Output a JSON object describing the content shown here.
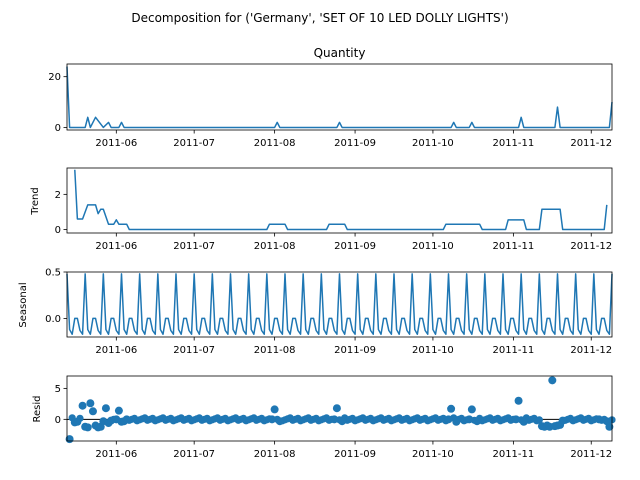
{
  "figure": {
    "suptitle": "Decomposition for ('Germany', 'SET OF 10 LED DOLLY LIGHTS')"
  },
  "colors": {
    "series": "#1f77b4",
    "axes": "#000000"
  },
  "chart_data": [
    {
      "type": "line",
      "name": "observed",
      "title": "Quantity",
      "ylabel": "",
      "x_range": [
        "2011-05-13",
        "2011-12-09"
      ],
      "ylim": [
        -1,
        25
      ],
      "yticks": [
        0,
        20
      ],
      "xticks": [
        "2011-06",
        "2011-07",
        "2011-08",
        "2011-09",
        "2011-10",
        "2011-11",
        "2011-12"
      ],
      "points": [
        [
          "2011-05-13",
          24
        ],
        [
          "2011-05-14",
          0
        ],
        [
          "2011-05-20",
          0
        ],
        [
          "2011-05-21",
          4
        ],
        [
          "2011-05-22",
          0
        ],
        [
          "2011-05-24",
          4
        ],
        [
          "2011-05-27",
          0
        ],
        [
          "2011-05-29",
          2
        ],
        [
          "2011-05-30",
          0
        ],
        [
          "2011-06-02",
          0
        ],
        [
          "2011-06-03",
          2
        ],
        [
          "2011-06-04",
          0
        ],
        [
          "2011-08-01",
          0
        ],
        [
          "2011-08-02",
          2
        ],
        [
          "2011-08-03",
          0
        ],
        [
          "2011-08-25",
          0
        ],
        [
          "2011-08-26",
          2
        ],
        [
          "2011-08-27",
          0
        ],
        [
          "2011-10-08",
          0
        ],
        [
          "2011-10-09",
          2
        ],
        [
          "2011-10-10",
          0
        ],
        [
          "2011-10-15",
          0
        ],
        [
          "2011-10-16",
          2
        ],
        [
          "2011-10-17",
          0
        ],
        [
          "2011-11-03",
          0
        ],
        [
          "2011-11-04",
          4
        ],
        [
          "2011-11-05",
          0
        ],
        [
          "2011-11-17",
          0
        ],
        [
          "2011-11-18",
          8
        ],
        [
          "2011-11-19",
          0
        ],
        [
          "2011-12-08",
          0
        ],
        [
          "2011-12-09",
          10
        ]
      ]
    },
    {
      "type": "line",
      "name": "trend",
      "title": "",
      "ylabel": "Trend",
      "x_range": [
        "2011-05-13",
        "2011-12-09"
      ],
      "ylim": [
        -0.2,
        3.5
      ],
      "yticks": [
        0,
        2
      ],
      "xticks": [
        "2011-06",
        "2011-07",
        "2011-08",
        "2011-09",
        "2011-10",
        "2011-11",
        "2011-12"
      ],
      "points": [
        [
          "2011-05-16",
          3.4
        ],
        [
          "2011-05-17",
          0.6
        ],
        [
          "2011-05-19",
          0.6
        ],
        [
          "2011-05-21",
          1.4
        ],
        [
          "2011-05-24",
          1.4
        ],
        [
          "2011-05-25",
          0.9
        ],
        [
          "2011-05-26",
          1.15
        ],
        [
          "2011-05-27",
          1.15
        ],
        [
          "2011-05-29",
          0.3
        ],
        [
          "2011-05-31",
          0.3
        ],
        [
          "2011-06-01",
          0.55
        ],
        [
          "2011-06-02",
          0.3
        ],
        [
          "2011-06-05",
          0.3
        ],
        [
          "2011-06-06",
          0
        ],
        [
          "2011-07-29",
          0
        ],
        [
          "2011-07-30",
          0.3
        ],
        [
          "2011-08-05",
          0.3
        ],
        [
          "2011-08-06",
          0
        ],
        [
          "2011-08-21",
          0
        ],
        [
          "2011-08-22",
          0.3
        ],
        [
          "2011-08-28",
          0.3
        ],
        [
          "2011-08-29",
          0
        ],
        [
          "2011-10-05",
          0
        ],
        [
          "2011-10-06",
          0.3
        ],
        [
          "2011-10-19",
          0.3
        ],
        [
          "2011-10-20",
          0
        ],
        [
          "2011-10-29",
          0
        ],
        [
          "2011-10-30",
          0.55
        ],
        [
          "2011-11-05",
          0.55
        ],
        [
          "2011-11-06",
          0
        ],
        [
          "2011-11-11",
          0
        ],
        [
          "2011-11-12",
          1.15
        ],
        [
          "2011-11-19",
          1.15
        ],
        [
          "2011-11-20",
          0
        ],
        [
          "2011-12-06",
          0
        ],
        [
          "2011-12-07",
          1.4
        ]
      ]
    },
    {
      "type": "line",
      "name": "seasonal",
      "title": "",
      "ylabel": "Seasonal",
      "x_range": [
        "2011-05-13",
        "2011-12-09"
      ],
      "ylim": [
        -0.2,
        0.5
      ],
      "yticks": [
        0.0,
        0.5
      ],
      "ytick_labels": [
        "0.0",
        "0.5"
      ],
      "xticks": [
        "2011-06",
        "2011-07",
        "2011-08",
        "2011-09",
        "2011-10",
        "2011-11",
        "2011-12"
      ],
      "period_days": 7,
      "pattern": [
        0.48,
        -0.12,
        -0.17,
        0.0,
        0.0,
        -0.13,
        -0.17
      ],
      "pattern_start": "2011-05-13",
      "pattern_end": "2011-12-09"
    },
    {
      "type": "scatter",
      "name": "resid",
      "title": "",
      "ylabel": "Resid",
      "x_range": [
        "2011-05-13",
        "2011-12-09"
      ],
      "ylim": [
        -3.5,
        7
      ],
      "yticks": [
        0,
        5
      ],
      "xticks": [
        "2011-06",
        "2011-07",
        "2011-08",
        "2011-09",
        "2011-10",
        "2011-11",
        "2011-12"
      ],
      "baseline": 0,
      "points": [
        [
          "2011-05-14",
          -3.2
        ],
        [
          "2011-05-16",
          -0.5
        ],
        [
          "2011-05-17",
          -0.4
        ],
        [
          "2011-05-19",
          2.2
        ],
        [
          "2011-05-20",
          -1.2
        ],
        [
          "2011-05-21",
          -1.3
        ],
        [
          "2011-05-22",
          2.6
        ],
        [
          "2011-05-23",
          1.3
        ],
        [
          "2011-05-24",
          -1.0
        ],
        [
          "2011-05-25",
          -1.3
        ],
        [
          "2011-05-26",
          -1.2
        ],
        [
          "2011-05-27",
          -0.3
        ],
        [
          "2011-05-28",
          1.8
        ],
        [
          "2011-05-29",
          -0.6
        ],
        [
          "2011-05-30",
          -0.2
        ],
        [
          "2011-06-01",
          0.0
        ],
        [
          "2011-06-02",
          1.4
        ],
        [
          "2011-06-03",
          -0.4
        ],
        [
          "2011-06-04",
          -0.3
        ],
        [
          "2011-06-05",
          0.0
        ],
        [
          "2011-07-31",
          0.0
        ],
        [
          "2011-08-01",
          1.6
        ],
        [
          "2011-08-03",
          -0.3
        ],
        [
          "2011-08-24",
          0.0
        ],
        [
          "2011-08-25",
          1.8
        ],
        [
          "2011-08-27",
          -0.3
        ],
        [
          "2011-10-07",
          0.0
        ],
        [
          "2011-10-08",
          1.7
        ],
        [
          "2011-10-10",
          -0.4
        ],
        [
          "2011-10-15",
          0.0
        ],
        [
          "2011-10-16",
          1.6
        ],
        [
          "2011-10-18",
          -0.3
        ],
        [
          "2011-11-02",
          0.0
        ],
        [
          "2011-11-03",
          3.0
        ],
        [
          "2011-11-05",
          -0.4
        ],
        [
          "2011-11-12",
          -1.1
        ],
        [
          "2011-11-13",
          -1.2
        ],
        [
          "2011-11-14",
          -1.0
        ],
        [
          "2011-11-15",
          -1.2
        ],
        [
          "2011-11-16",
          6.3
        ],
        [
          "2011-11-17",
          -1.1
        ],
        [
          "2011-11-18",
          -1.0
        ],
        [
          "2011-11-19",
          -0.9
        ],
        [
          "2011-11-20",
          -0.2
        ],
        [
          "2011-12-04",
          0.0
        ],
        [
          "2011-12-07",
          -0.3
        ],
        [
          "2011-12-08",
          -1.2
        ]
      ]
    }
  ]
}
